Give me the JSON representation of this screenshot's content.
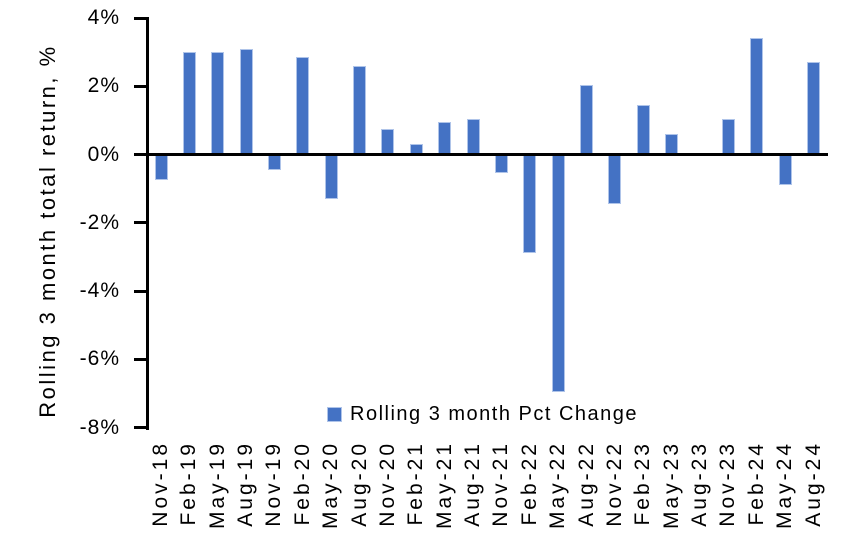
{
  "chart_data": {
    "type": "bar",
    "title": "",
    "xlabel": "",
    "ylabel": "Rolling 3 month total return, %",
    "ylim": [
      -8,
      4
    ],
    "ytick_step": 2,
    "yticks": [
      {
        "value": 4,
        "label": "4%"
      },
      {
        "value": 2,
        "label": "2%"
      },
      {
        "value": 0,
        "label": "0%"
      },
      {
        "value": -2,
        "label": "-2%"
      },
      {
        "value": -4,
        "label": "-4%"
      },
      {
        "value": -6,
        "label": "-6%"
      },
      {
        "value": -8,
        "label": "-8%"
      }
    ],
    "categories": [
      "Nov-18",
      "Feb-19",
      "May-19",
      "Aug-19",
      "Nov-19",
      "Feb-20",
      "May-20",
      "Aug-20",
      "Nov-20",
      "Feb-21",
      "May-21",
      "Aug-21",
      "Nov-21",
      "Feb-22",
      "May-22",
      "Aug-22",
      "Nov-22",
      "Feb-23",
      "May-23",
      "Aug-23",
      "Nov-23",
      "Feb-24",
      "May-24",
      "Aug-24"
    ],
    "values": [
      -0.75,
      3.0,
      3.0,
      3.1,
      -0.45,
      2.85,
      -1.3,
      2.6,
      0.75,
      0.3,
      0.95,
      1.05,
      -0.55,
      -2.9,
      -6.95,
      2.05,
      -1.45,
      1.45,
      0.6,
      0.0,
      1.05,
      3.4,
      -0.9,
      2.7
    ],
    "series_name": "Rolling 3 month Pct Change",
    "legend": {
      "label": "Rolling 3 month Pct Change",
      "position": "bottom-center"
    },
    "grid": false,
    "colors": {
      "bar_fill": "#4472C4",
      "bar_border": "#AFC4E9",
      "axis": "#000000",
      "text": "#000000",
      "background": "#FFFFFF"
    }
  }
}
